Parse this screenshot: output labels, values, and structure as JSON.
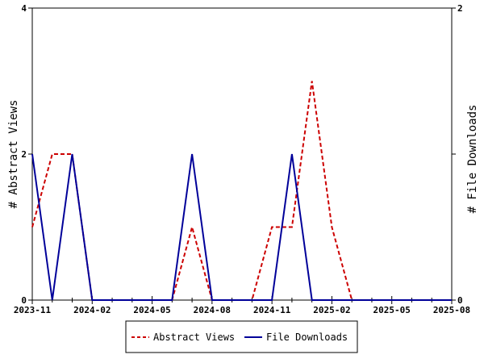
{
  "chart_data": {
    "type": "line",
    "x": [
      "2023-11",
      "2023-12",
      "2024-01",
      "2024-02",
      "2024-03",
      "2024-04",
      "2024-05",
      "2024-06",
      "2024-07",
      "2024-08",
      "2024-09",
      "2024-10",
      "2024-11",
      "2024-12",
      "2025-01",
      "2025-02",
      "2025-03",
      "2025-04",
      "2025-05",
      "2025-06",
      "2025-07",
      "2025-08"
    ],
    "xticks": [
      "2023-11",
      "2024-02",
      "2024-05",
      "2024-08",
      "2024-11",
      "2025-02",
      "2025-05",
      "2025-08"
    ],
    "series": [
      {
        "name": "Abstract Views",
        "axis": "left",
        "color": "#cc0000",
        "dash": "dashed",
        "values": [
          1,
          2,
          2,
          0,
          0,
          0,
          0,
          0,
          1,
          0,
          0,
          0,
          1,
          1,
          3,
          1,
          0,
          0,
          0,
          0,
          0,
          0
        ]
      },
      {
        "name": "File Downloads",
        "axis": "right",
        "color": "#000099",
        "dash": "solid",
        "values": [
          1,
          0,
          1,
          0,
          0,
          0,
          0,
          0,
          1,
          0,
          0,
          0,
          0,
          1,
          0,
          0,
          0,
          0,
          0,
          0,
          0,
          0
        ]
      }
    ],
    "ylabel_left": "# Abstract Views",
    "ylabel_right": "# File Downloads",
    "ylim_left": [
      0,
      4
    ],
    "ylim_right": [
      0,
      2
    ],
    "yticks_left": [
      "0",
      "2",
      "4"
    ],
    "yticks_right": [
      "0",
      "1",
      "2"
    ],
    "grid": false,
    "legend_position": "bottom"
  }
}
